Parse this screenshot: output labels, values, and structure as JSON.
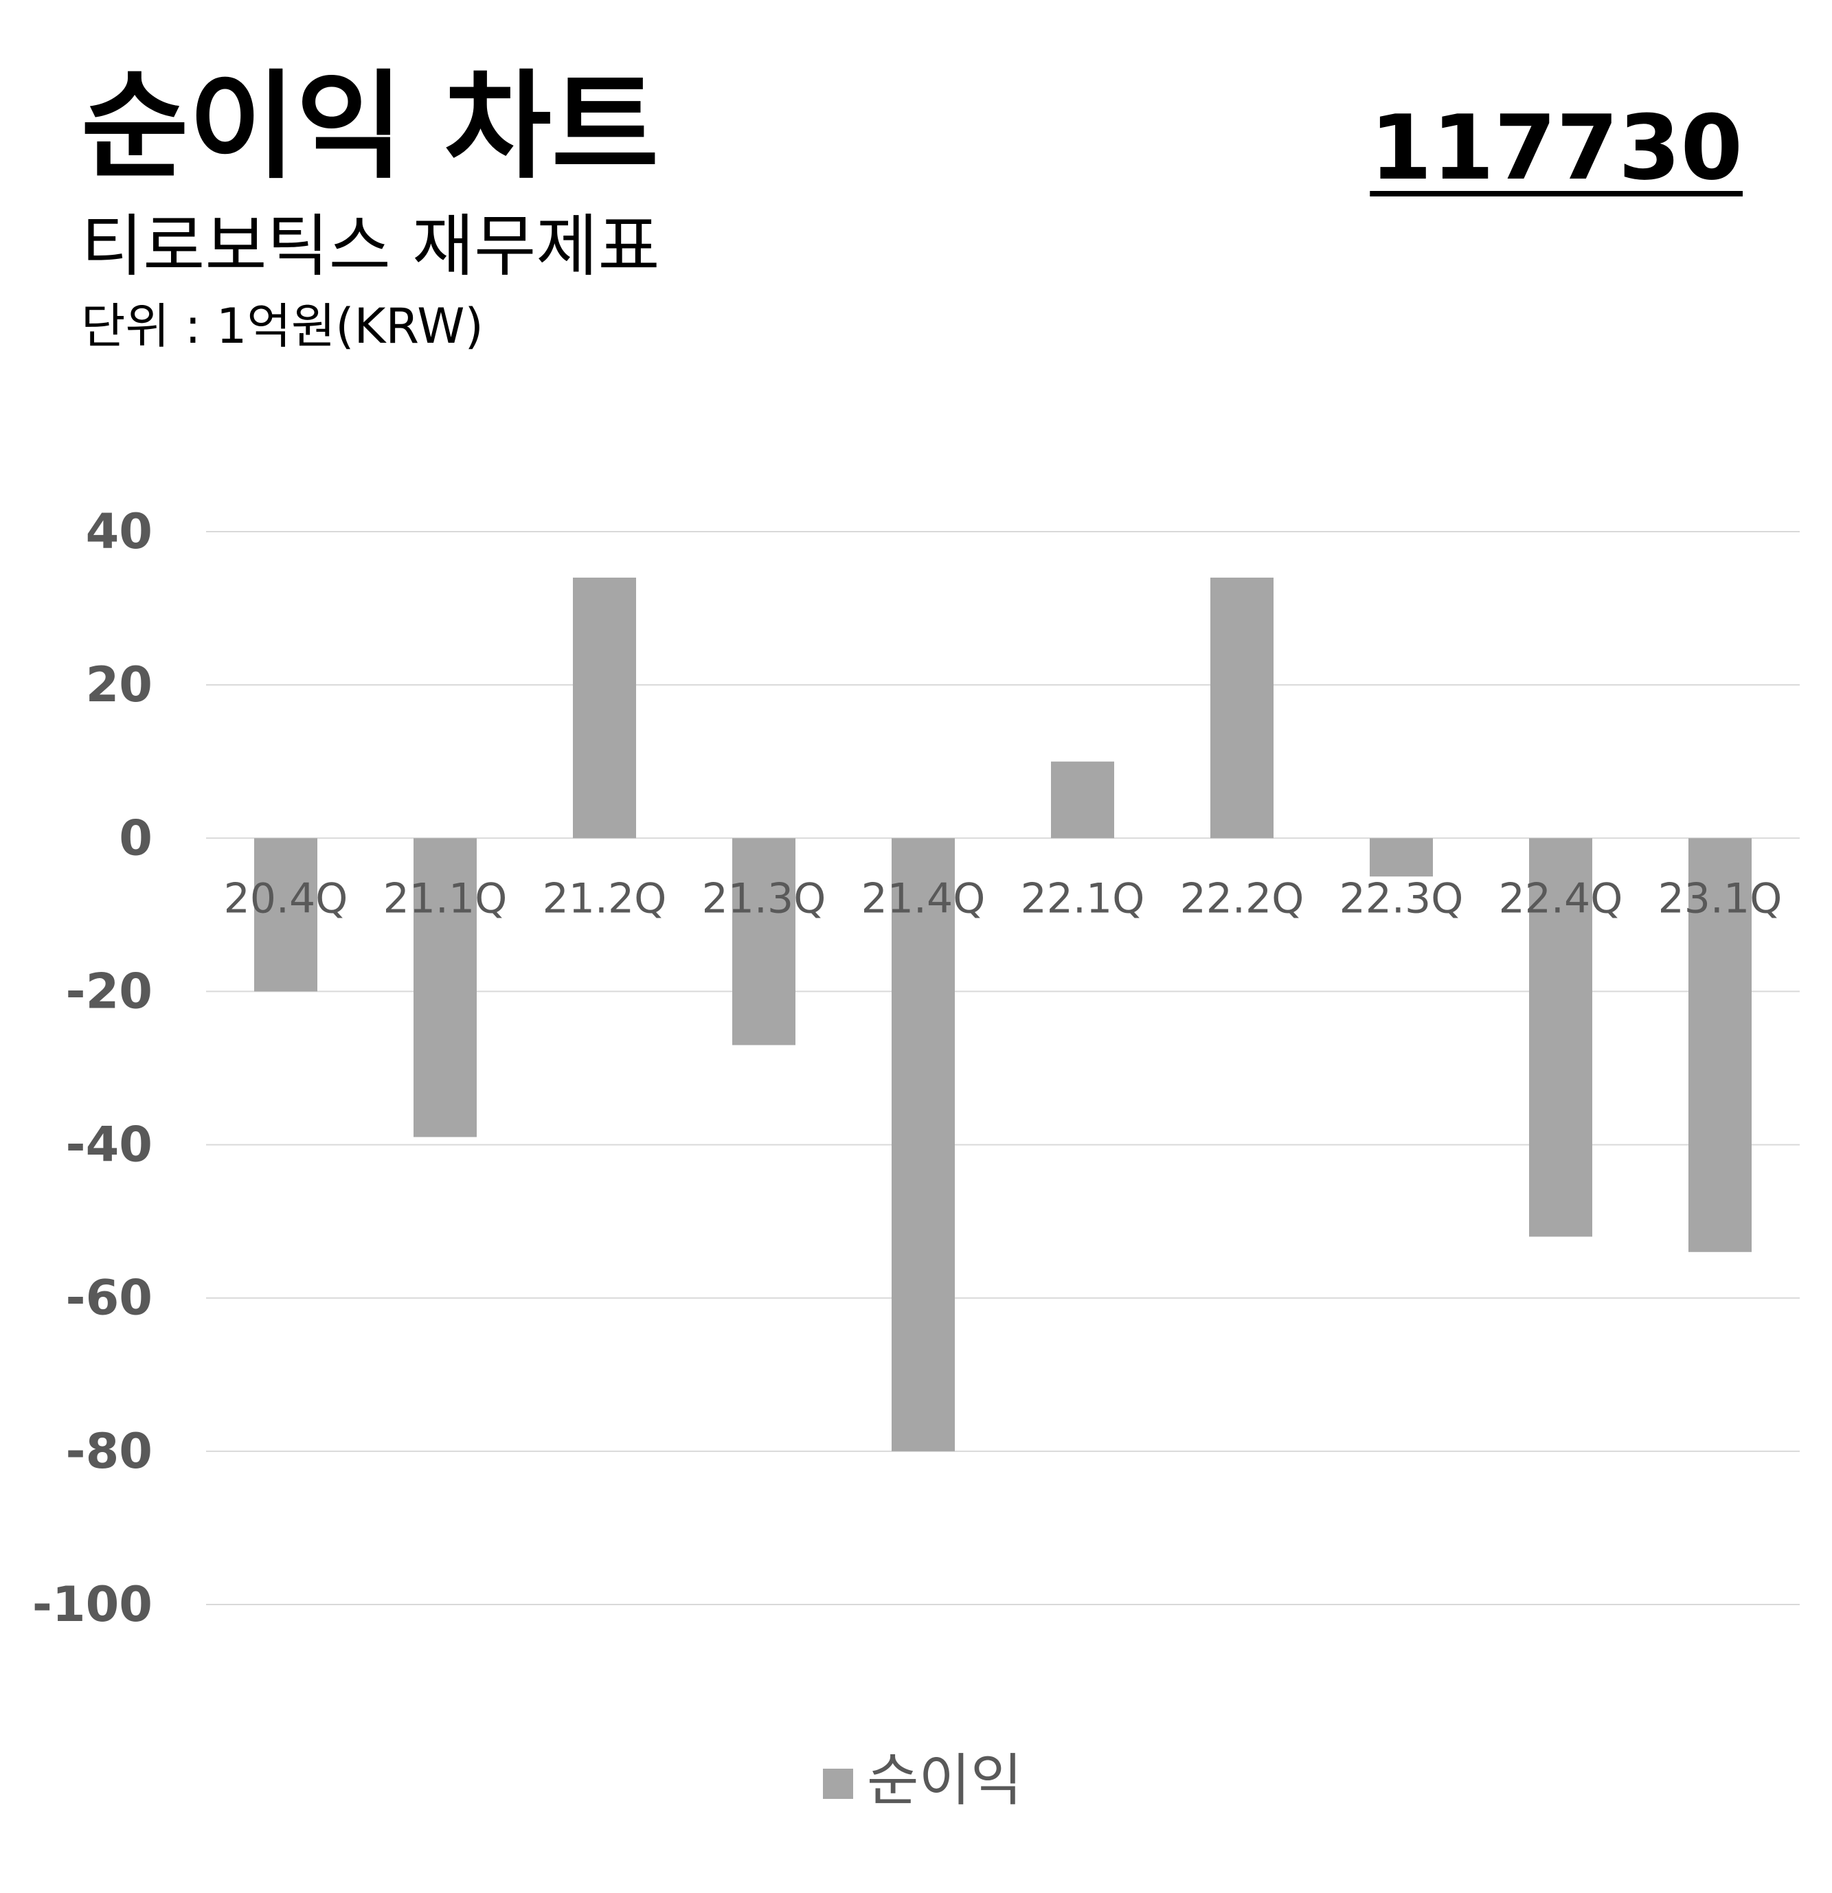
{
  "header": {
    "title": "순이익 차트",
    "code": "117730",
    "subtitle": "티로보틱스 재무제표",
    "unit": "단위 : 1억원(KRW)"
  },
  "colors": {
    "bar": "#a6a6a6",
    "grid": "#d9d9d9",
    "y_tick_text": "#595959",
    "x_tick_text": "#595959",
    "legend_text": "#595959"
  },
  "chart_data": {
    "type": "bar",
    "title": "",
    "xlabel": "",
    "ylabel": "",
    "categories": [
      "20.4Q",
      "21.1Q",
      "21.2Q",
      "21.3Q",
      "21.4Q",
      "22.1Q",
      "22.2Q",
      "22.3Q",
      "22.4Q",
      "23.1Q"
    ],
    "series": [
      {
        "name": "순이익",
        "values": [
          -20,
          -39,
          34,
          -27,
          -80,
          10,
          34,
          -5,
          -52,
          -54
        ]
      }
    ],
    "ylim": [
      -100,
      40
    ],
    "yticks": [
      "40",
      "20",
      "0",
      "-20",
      "-40",
      "-60",
      "-80",
      "-100"
    ],
    "grid": true,
    "legend": "bottom-center"
  }
}
